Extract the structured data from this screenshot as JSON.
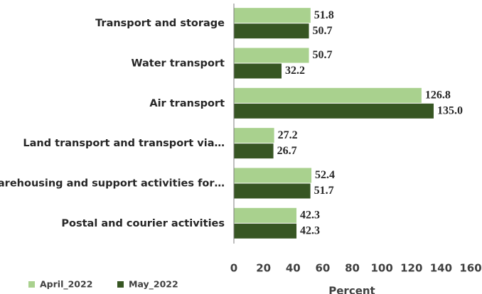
{
  "chart_data": {
    "type": "hbar",
    "categories": [
      "Transport and storage",
      "Water transport",
      "Air transport",
      "Land transport and transport via…",
      "Warehousing and support activities for…",
      "Postal and courier activities"
    ],
    "series": [
      {
        "name": "April_2022",
        "color": "#a9d18e",
        "values": [
          51.8,
          50.7,
          126.8,
          27.2,
          52.4,
          42.3
        ],
        "value_labels": [
          "51.8",
          "50.7",
          "126.8",
          "27.2",
          "52.4",
          "42.3"
        ]
      },
      {
        "name": "May_2022",
        "color": "#375623",
        "values": [
          50.7,
          32.2,
          135.0,
          26.7,
          51.7,
          42.3
        ],
        "value_labels": [
          "50.7",
          "32.2",
          "135.0",
          "26.7",
          "51.7",
          "42.3"
        ]
      }
    ],
    "xlabel": "Percent",
    "xlim": [
      0,
      160
    ],
    "xticks": [
      0,
      20,
      40,
      60,
      80,
      100,
      120,
      140,
      160
    ]
  }
}
